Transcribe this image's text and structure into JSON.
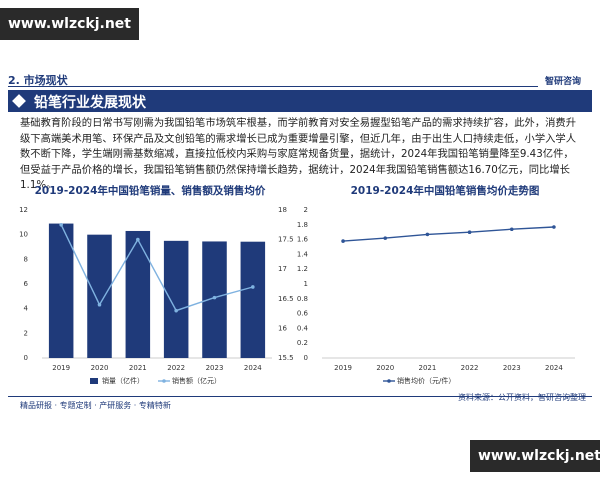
{
  "watermark_top": "www.wlzckj.net",
  "watermark_bottom": "www.wlzckj.net",
  "header": {
    "section": "2. 市场现状",
    "logo": "智研咨询"
  },
  "title_bar": "铅笔行业发展现状",
  "paragraph": "基础教育阶段的日常书写刚需为我国铅笔市场筑牢根基，而学前教育对安全易握型铅笔产品的需求持续扩容，此外，消费升级下高端美术用笔、环保产品及文创铅笔的需求增长已成为重要增量引擎，但近几年，由于出生人口持续走低，小学入学人数不断下降，学生端刚需基数缩减，直接拉低校内采购与家庭常规备货量，据统计，2024年我国铅笔销量降至9.43亿件，但受益于产品价格的增长，我国铅笔销售额仍然保持增长趋势，据统计，2024年我国铅笔销售额达16.70亿元，同比增长1.1%。",
  "chart_data": [
    {
      "type": "bar-line",
      "title": "2019-2024年中国铅笔销量、销售额及销售均价",
      "categories": [
        "2019",
        "2020",
        "2021",
        "2022",
        "2023",
        "2024"
      ],
      "series": [
        {
          "name": "销量（亿件）",
          "type": "bar",
          "color": "#1f3a7a",
          "values": [
            10.9,
            10.0,
            10.3,
            9.5,
            9.45,
            9.43
          ]
        },
        {
          "name": "销售额（亿元）",
          "type": "line",
          "axis": "y2",
          "color": "#7fb2e0",
          "values": [
            17.75,
            16.4,
            17.5,
            16.3,
            16.52,
            16.7
          ]
        }
      ],
      "ylim": [
        0,
        12
      ],
      "yticks": [
        0,
        2,
        4,
        6,
        8,
        10,
        12
      ],
      "y2lim": [
        15.5,
        18
      ],
      "y2ticks": [
        15.5,
        16,
        16.5,
        17,
        17.5,
        18
      ]
    },
    {
      "type": "line",
      "title": "2019-2024年中国铅笔销售均价走势图",
      "categories": [
        "2019",
        "2020",
        "2021",
        "2022",
        "2023",
        "2024"
      ],
      "series": [
        {
          "name": "销售均价（元/件）",
          "type": "line",
          "color": "#2f5597",
          "values": [
            1.58,
            1.62,
            1.67,
            1.7,
            1.74,
            1.77
          ]
        }
      ],
      "ylim": [
        0,
        2
      ],
      "yticks": [
        0,
        0.2,
        0.4,
        0.6,
        0.8,
        1,
        1.2,
        1.4,
        1.6,
        1.8,
        2
      ]
    }
  ],
  "source": "资料来源：公开资料，智研咨询整理",
  "footer": "精品研报 · 专题定制 · 产研服务 · 专精特新"
}
